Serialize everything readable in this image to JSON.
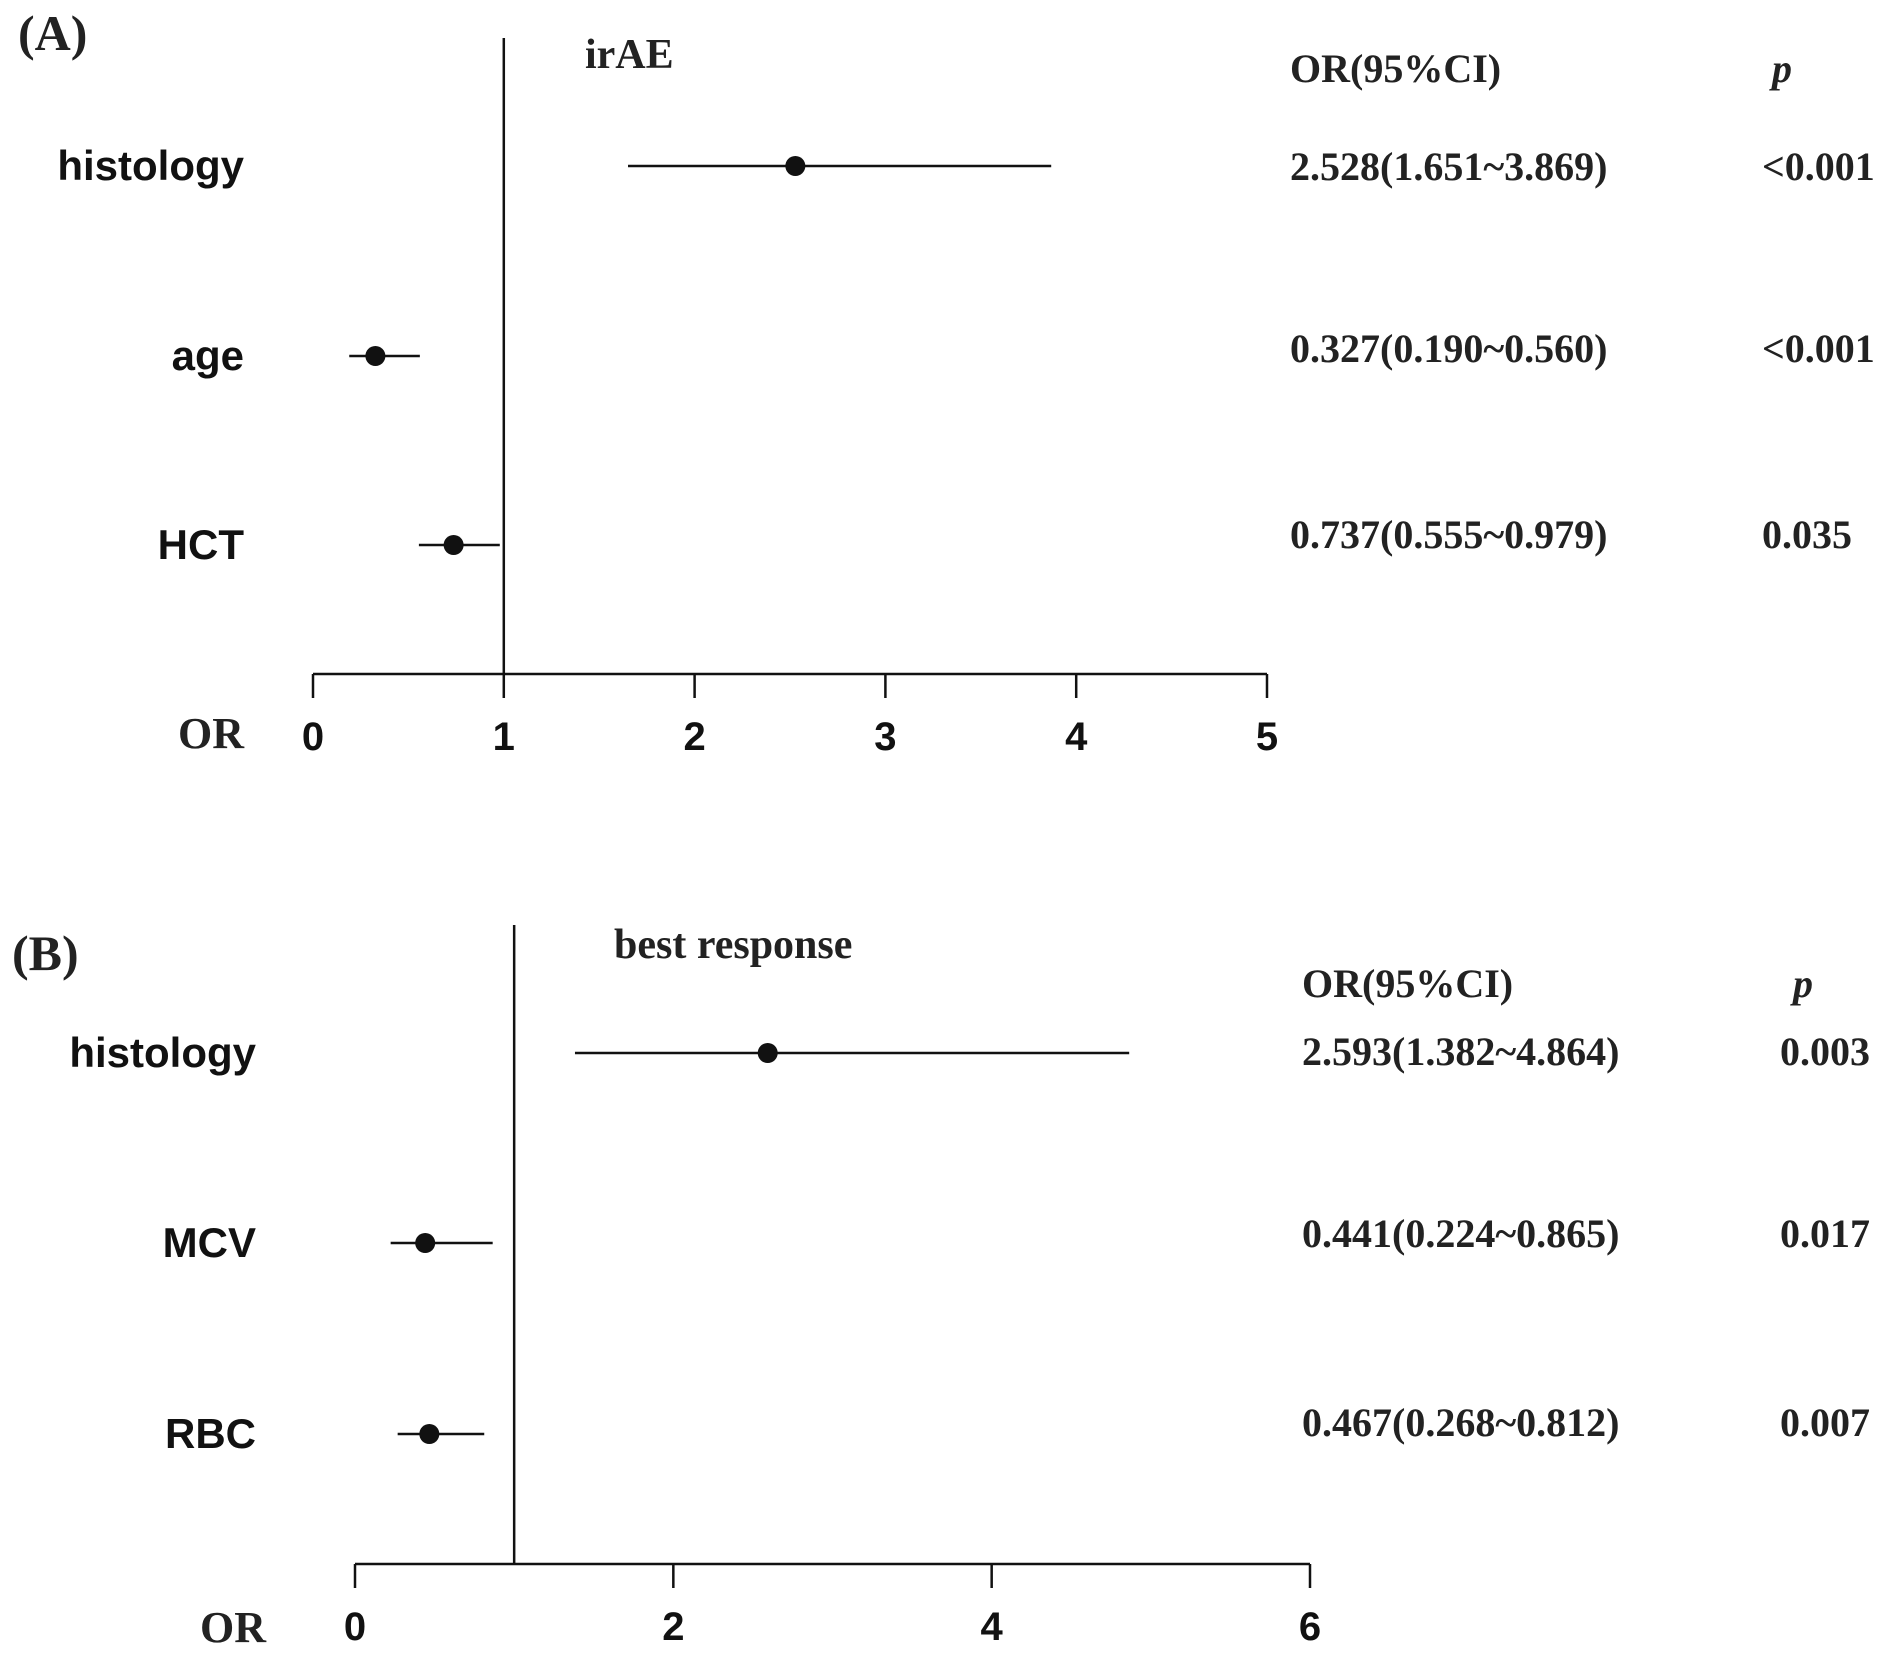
{
  "chart_data": [
    {
      "type": "forest",
      "panel_label": "(A)",
      "title": "irAE",
      "xlabel": "OR",
      "xlim": [
        0,
        5
      ],
      "xticks": [
        0,
        1,
        2,
        3,
        4,
        5
      ],
      "reference_line": 1,
      "table_headers": {
        "or_ci": "OR(95%CI)",
        "p": "p"
      },
      "rows": [
        {
          "label": "histology",
          "or": 2.528,
          "lower": 1.651,
          "upper": 3.869,
          "or_text": "2.528(1.651~3.869)",
          "p_text": "<0.001"
        },
        {
          "label": "age",
          "or": 0.327,
          "lower": 0.19,
          "upper": 0.56,
          "or_text": "0.327(0.190~0.560)",
          "p_text": "<0.001"
        },
        {
          "label": "HCT",
          "or": 0.737,
          "lower": 0.555,
          "upper": 0.979,
          "or_text": "0.737(0.555~0.979)",
          "p_text": "0.035"
        }
      ]
    },
    {
      "type": "forest",
      "panel_label": "(B)",
      "title": "best response",
      "xlabel": "OR",
      "xlim": [
        0,
        6
      ],
      "xticks": [
        0,
        2,
        4,
        6
      ],
      "reference_line": 1,
      "table_headers": {
        "or_ci": "OR(95%CI)",
        "p": "p"
      },
      "rows": [
        {
          "label": "histology",
          "or": 2.593,
          "lower": 1.382,
          "upper": 4.864,
          "or_text": "2.593(1.382~4.864)",
          "p_text": "0.003"
        },
        {
          "label": "MCV",
          "or": 0.441,
          "lower": 0.224,
          "upper": 0.865,
          "or_text": "0.441(0.224~0.865)",
          "p_text": "0.017"
        },
        {
          "label": "RBC",
          "or": 0.467,
          "lower": 0.268,
          "upper": 0.812,
          "or_text": "0.467(0.268~0.812)",
          "p_text": "0.007"
        }
      ]
    }
  ]
}
